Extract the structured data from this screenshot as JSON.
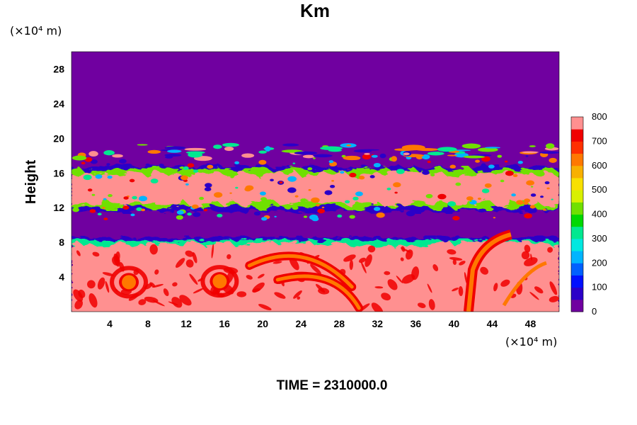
{
  "chart_data": {
    "type": "heatmap",
    "title": "Km",
    "ylabel": "Height",
    "y_unit": "(×10⁴ m)",
    "x_unit": "(×10⁴ m)",
    "annotation": "TIME = 2310000.0",
    "xlim": [
      0,
      51
    ],
    "ylim": [
      0,
      30
    ],
    "xticks": [
      4,
      8,
      12,
      16,
      20,
      24,
      28,
      32,
      36,
      40,
      44,
      48
    ],
    "yticks": [
      4,
      8,
      12,
      16,
      20,
      24,
      28
    ],
    "colorbar": {
      "min": 0,
      "max": 800,
      "ticks": [
        0,
        100,
        200,
        300,
        400,
        500,
        600,
        700,
        800
      ],
      "colors": [
        "#7000a0",
        "#2b00c8",
        "#0010ff",
        "#0060ff",
        "#00b4ff",
        "#00e8e0",
        "#00e890",
        "#00d800",
        "#70e000",
        "#d8f000",
        "#f8e000",
        "#f8b000",
        "#ff7800",
        "#ff3000",
        "#f00000",
        "#ff9090"
      ]
    },
    "background_value": 0,
    "saturated_value": 800,
    "layers": [
      {
        "name": "lower layer",
        "y_range": [
          0,
          8.6
        ],
        "value": "800"
      },
      {
        "name": "middle layer",
        "y_range": [
          12.2,
          16.4
        ],
        "value": "800"
      },
      {
        "name": "upper filaments",
        "y_range": [
          17.6,
          19.3
        ],
        "value": "0-800"
      }
    ],
    "features": [
      {
        "name": "eddy",
        "x": 6,
        "y": 3.4,
        "value": 600
      },
      {
        "name": "eddy",
        "x": 15.5,
        "y": 3.5,
        "value": 600
      },
      {
        "name": "arc",
        "x": 26,
        "y": 4.5,
        "value": 600
      },
      {
        "name": "plume",
        "x": 43,
        "y": 4,
        "value": 600
      }
    ]
  }
}
